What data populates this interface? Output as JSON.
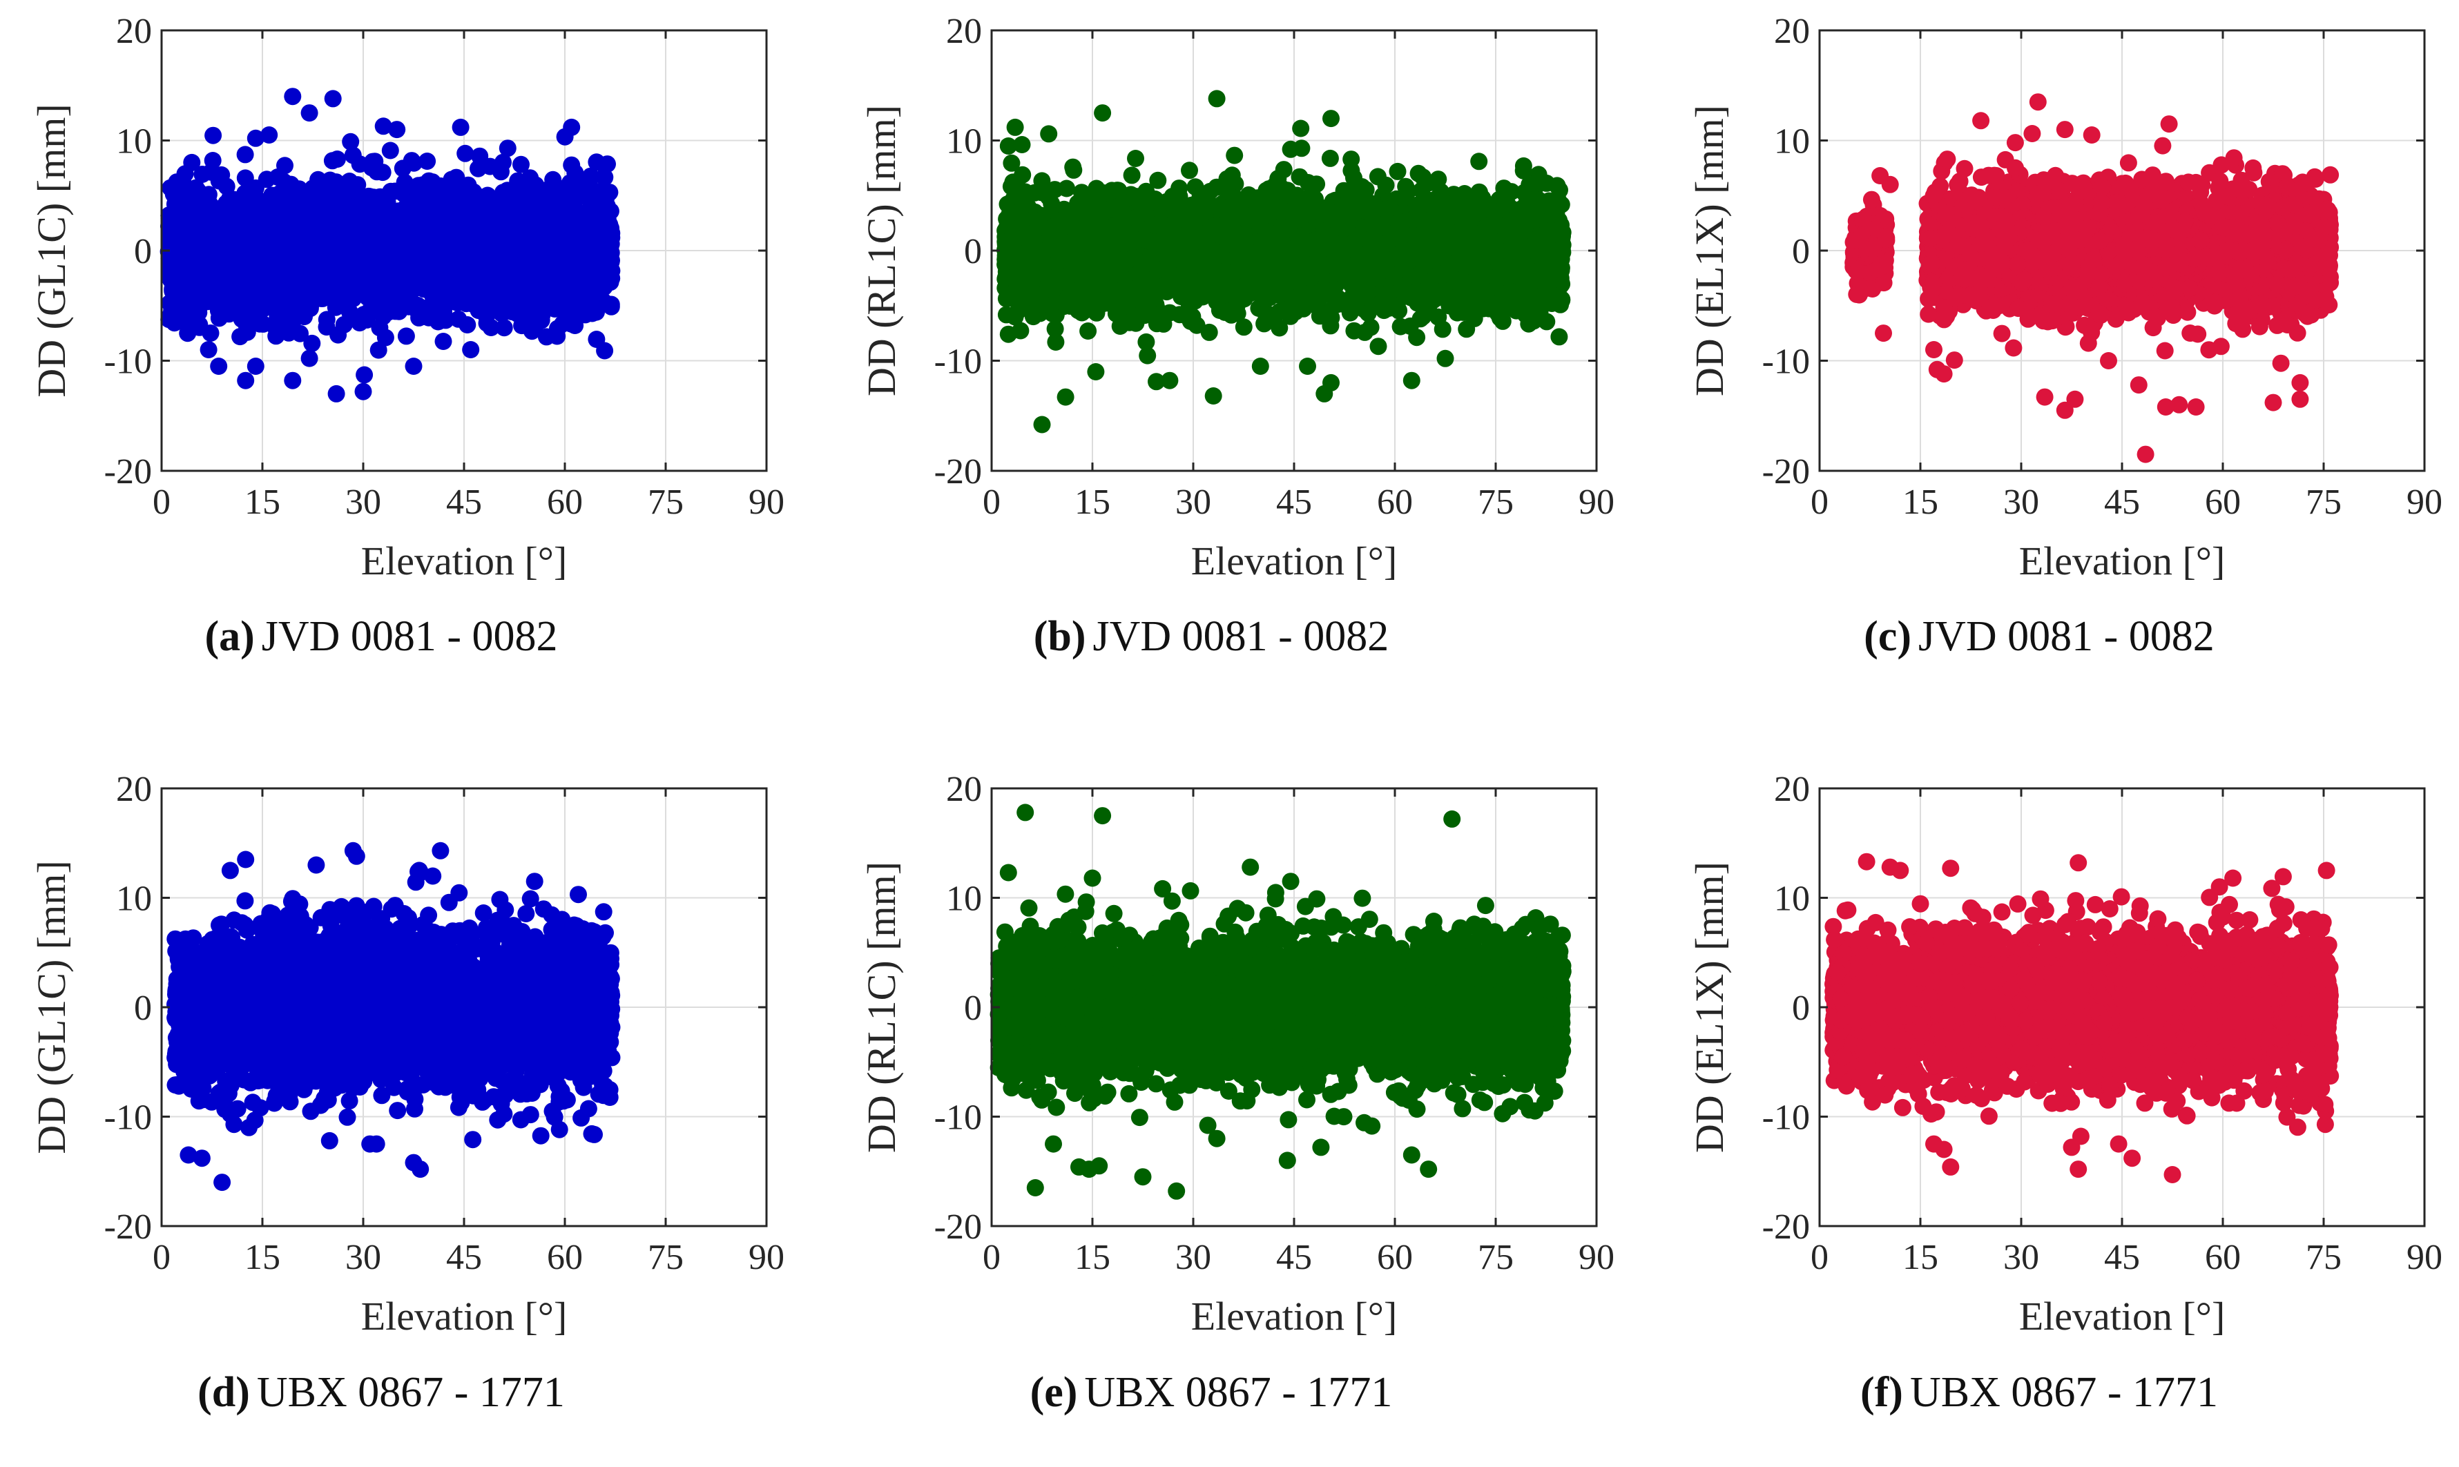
{
  "chart_data": [
    {
      "type": "scatter",
      "panel_label": "(a)",
      "caption": "JVD 0081 - 0082",
      "xlabel": "Elevation [°]",
      "ylabel": "DD (GL1C) [mm]",
      "xlim": [
        0,
        90
      ],
      "ylim": [
        -20,
        20
      ],
      "xticks": [
        "0",
        "15",
        "30",
        "45",
        "60",
        "75",
        "90"
      ],
      "yticks": [
        "20",
        "10",
        "0",
        "-10",
        "-20"
      ],
      "grid": true,
      "color": "#0000cc",
      "series": [
        {
          "x_range": [
            1,
            67
          ],
          "core_sd": 3.0,
          "outliers": [
            [
              19.5,
              14
            ],
            [
              25.5,
              13.8
            ],
            [
              33,
              11.3
            ],
            [
              35,
              11
            ],
            [
              61,
              11.2
            ],
            [
              22,
              12.5
            ],
            [
              14,
              10.2
            ],
            [
              16,
              10.5
            ],
            [
              44.5,
              11.2
            ],
            [
              51.5,
              9.3
            ],
            [
              7,
              -9
            ],
            [
              8.5,
              -10.5
            ],
            [
              12.5,
              -11.8
            ],
            [
              14,
              -10.5
            ],
            [
              19.5,
              -11.8
            ],
            [
              26,
              -13
            ],
            [
              30,
              -12.8
            ],
            [
              37.5,
              -10.5
            ],
            [
              46,
              -9
            ],
            [
              61.5,
              -6.8
            ],
            [
              3.5,
              4.2
            ],
            [
              55.5,
              -7
            ]
          ]
        }
      ]
    },
    {
      "type": "scatter",
      "panel_label": "(b)",
      "caption": "JVD 0081 - 0082",
      "xlabel": "Elevation [°]",
      "ylabel": "DD (RL1C) [mm]",
      "xlim": [
        0,
        90
      ],
      "ylim": [
        -20,
        20
      ],
      "xticks": [
        "0",
        "15",
        "30",
        "45",
        "60",
        "75",
        "90"
      ],
      "yticks": [
        "20",
        "10",
        "0",
        "-10",
        "-20"
      ],
      "grid": true,
      "color": "#006000",
      "series": [
        {
          "x_range": [
            2,
            85
          ],
          "core_sd": 2.6,
          "outliers": [
            [
              3.5,
              11.2
            ],
            [
              2.5,
              9.5
            ],
            [
              8.5,
              10.6
            ],
            [
              16.5,
              12.5
            ],
            [
              33.5,
              13.8
            ],
            [
              46,
              11.1
            ],
            [
              50.5,
              12
            ],
            [
              44.5,
              9.2
            ],
            [
              53.5,
              8.3
            ],
            [
              63.5,
              7
            ],
            [
              72.5,
              8.1
            ],
            [
              84.5,
              5.5
            ],
            [
              7.5,
              -15.8
            ],
            [
              11,
              -13.3
            ],
            [
              15.5,
              -11
            ],
            [
              24.5,
              -11.9
            ],
            [
              26.5,
              -11.8
            ],
            [
              33,
              -13.2
            ],
            [
              40,
              -10.5
            ],
            [
              47,
              -10.5
            ],
            [
              49.5,
              -13
            ],
            [
              50.5,
              -12
            ],
            [
              62.5,
              -11.8
            ],
            [
              67.5,
              -9.8
            ],
            [
              2.5,
              -7.6
            ]
          ]
        }
      ]
    },
    {
      "type": "scatter",
      "panel_label": "(c)",
      "caption": "JVD 0081 - 0082",
      "xlabel": "Elevation [°]",
      "ylabel": "DD (EL1X) [mm]",
      "xlim": [
        0,
        90
      ],
      "ylim": [
        -20,
        20
      ],
      "xticks": [
        "0",
        "15",
        "30",
        "45",
        "60",
        "75",
        "90"
      ],
      "yticks": [
        "20",
        "10",
        "0",
        "-10",
        "-20"
      ],
      "grid": true,
      "color": "#dc143c",
      "series": [
        {
          "x_range": [
            5,
            10
          ],
          "core_sd": 1.6,
          "outliers": [
            [
              9,
              6.8
            ],
            [
              10.5,
              6
            ],
            [
              9.5,
              -7.5
            ]
          ]
        },
        {
          "x_range": [
            16,
            76
          ],
          "core_sd": 2.8,
          "outliers": [
            [
              24,
              11.8
            ],
            [
              32.5,
              13.5
            ],
            [
              36.5,
              11
            ],
            [
              40.5,
              10.5
            ],
            [
              52,
              11.5
            ],
            [
              64.5,
              7.5
            ],
            [
              17,
              -9
            ],
            [
              17.5,
              -10.8
            ],
            [
              18.5,
              -11.2
            ],
            [
              33.5,
              -13.3
            ],
            [
              36.5,
              -14.5
            ],
            [
              38,
              -13.5
            ],
            [
              47.5,
              -12.2
            ],
            [
              48.5,
              -18.5
            ],
            [
              51.5,
              -14.2
            ],
            [
              53.5,
              -14
            ],
            [
              56,
              -14.2
            ],
            [
              67.5,
              -13.8
            ],
            [
              71.5,
              -12
            ],
            [
              71.5,
              -13.5
            ],
            [
              43,
              -10
            ]
          ]
        }
      ]
    },
    {
      "type": "scatter",
      "panel_label": "(d)",
      "caption": "UBX 0867 - 1771",
      "xlabel": "Elevation [°]",
      "ylabel": "DD (GL1C) [mm]",
      "xlim": [
        0,
        90
      ],
      "ylim": [
        -20,
        20
      ],
      "xticks": [
        "0",
        "15",
        "30",
        "45",
        "60",
        "75",
        "90"
      ],
      "yticks": [
        "20",
        "10",
        "0",
        "-10",
        "-20"
      ],
      "grid": true,
      "color": "#0000cc",
      "series": [
        {
          "x_range": [
            2,
            67
          ],
          "core_sd": 3.8,
          "outliers": [
            [
              12.5,
              13.5
            ],
            [
              23,
              13
            ],
            [
              28.5,
              14.3
            ],
            [
              29,
              13.8
            ],
            [
              41.5,
              14.3
            ],
            [
              38.5,
              12.3
            ],
            [
              55.5,
              11.5
            ],
            [
              62,
              10.3
            ],
            [
              4,
              -13.5
            ],
            [
              6,
              -13.8
            ],
            [
              9,
              -16
            ],
            [
              13,
              -11
            ],
            [
              38.5,
              -14.8
            ],
            [
              37.5,
              -14.2
            ],
            [
              25,
              -12.2
            ],
            [
              31,
              -12.5
            ]
          ]
        }
      ]
    },
    {
      "type": "scatter",
      "panel_label": "(e)",
      "caption": "UBX 0867 - 1771",
      "xlabel": "Elevation [°]",
      "ylabel": "DD (RL1C) [mm]",
      "xlim": [
        0,
        90
      ],
      "ylim": [
        -20,
        20
      ],
      "xticks": [
        "0",
        "15",
        "30",
        "45",
        "60",
        "75",
        "90"
      ],
      "yticks": [
        "20",
        "10",
        "0",
        "-10",
        "-20"
      ],
      "grid": true,
      "color": "#006000",
      "series": [
        {
          "x_range": [
            1,
            85
          ],
          "core_sd": 3.2,
          "outliers": [
            [
              5,
              17.8
            ],
            [
              16.5,
              17.5
            ],
            [
              68.5,
              17.2
            ],
            [
              2.5,
              12.3
            ],
            [
              15,
              11.8
            ],
            [
              38.5,
              12.8
            ],
            [
              44.5,
              11.5
            ],
            [
              73.5,
              9.3
            ],
            [
              6.5,
              -16.5
            ],
            [
              13,
              -14.6
            ],
            [
              14.5,
              -14.8
            ],
            [
              16,
              -14.5
            ],
            [
              22.5,
              -15.5
            ],
            [
              27.5,
              -16.8
            ],
            [
              44,
              -14
            ],
            [
              49,
              -12.8
            ],
            [
              65,
              -14.8
            ],
            [
              62.5,
              -13.5
            ],
            [
              33.5,
              -12
            ]
          ]
        }
      ]
    },
    {
      "type": "scatter",
      "panel_label": "(f)",
      "caption": "UBX 0867 - 1771",
      "xlabel": "Elevation [°]",
      "ylabel": "DD (EL1X) [mm]",
      "xlim": [
        0,
        90
      ],
      "ylim": [
        -20,
        20
      ],
      "xticks": [
        "0",
        "15",
        "30",
        "45",
        "60",
        "75",
        "90"
      ],
      "yticks": [
        "20",
        "10",
        "0",
        "-10",
        "-20"
      ],
      "grid": true,
      "color": "#dc143c",
      "series": [
        {
          "x_range": [
            2,
            76
          ],
          "core_sd": 3.4,
          "outliers": [
            [
              7,
              13.3
            ],
            [
              10.5,
              12.8
            ],
            [
              12,
              12.5
            ],
            [
              19.5,
              12.7
            ],
            [
              38.5,
              13.2
            ],
            [
              61.5,
              11.8
            ],
            [
              59.5,
              11
            ],
            [
              17,
              -12.5
            ],
            [
              18.5,
              -13
            ],
            [
              19.5,
              -14.6
            ],
            [
              37.5,
              -12.8
            ],
            [
              38.5,
              -14.8
            ],
            [
              46.5,
              -13.8
            ],
            [
              52.5,
              -15.3
            ],
            [
              44.5,
              -12.5
            ]
          ]
        }
      ]
    }
  ]
}
